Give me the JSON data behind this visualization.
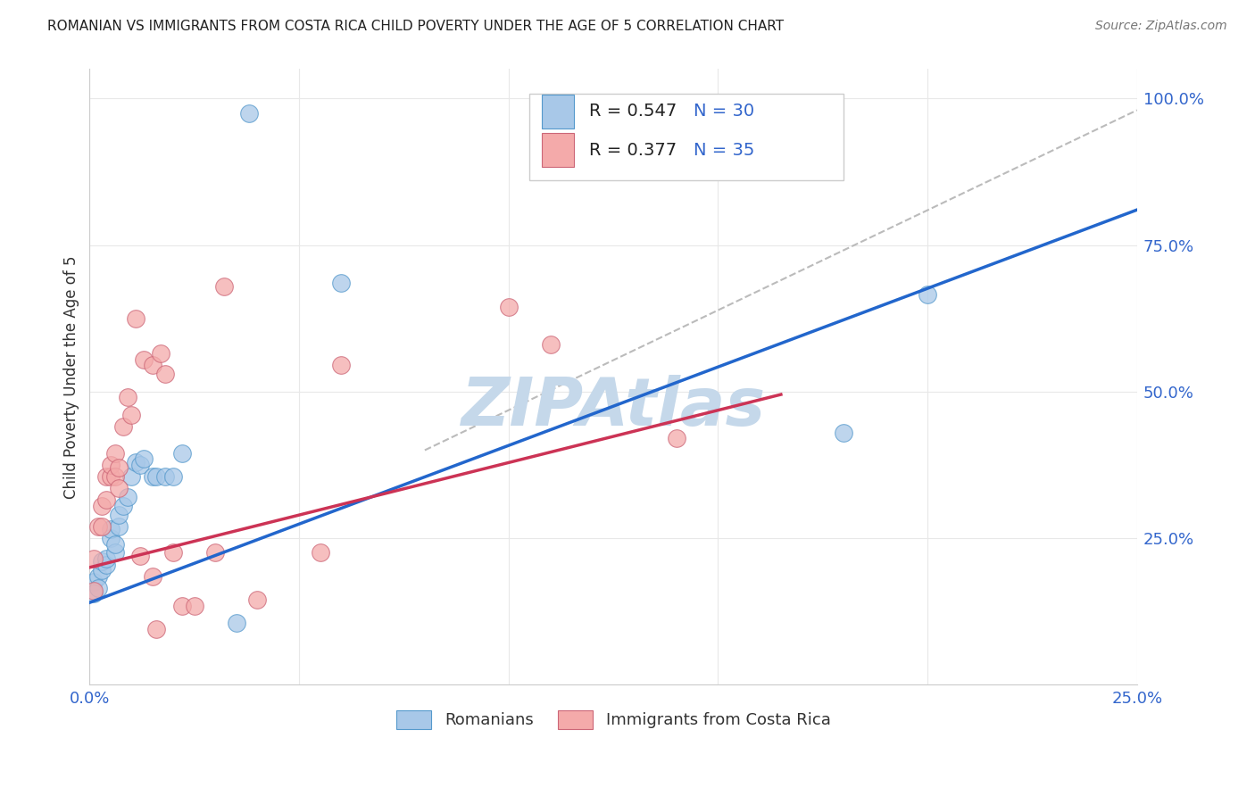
{
  "title": "ROMANIAN VS IMMIGRANTS FROM COSTA RICA CHILD POVERTY UNDER THE AGE OF 5 CORRELATION CHART",
  "source": "Source: ZipAtlas.com",
  "ylabel": "Child Poverty Under the Age of 5",
  "xlim": [
    0.0,
    0.25
  ],
  "ylim": [
    0.0,
    1.05
  ],
  "xticks": [
    0.0,
    0.05,
    0.1,
    0.15,
    0.2,
    0.25
  ],
  "xticklabels": [
    "0.0%",
    "",
    "",
    "",
    "",
    "25.0%"
  ],
  "yticks": [
    0.0,
    0.25,
    0.5,
    0.75,
    1.0
  ],
  "yticklabels": [
    "",
    "25.0%",
    "50.0%",
    "75.0%",
    "100.0%"
  ],
  "blue_fill": "#a8c8e8",
  "blue_edge": "#5599cc",
  "pink_fill": "#f4aaaa",
  "pink_edge": "#cc6677",
  "blue_line_color": "#2266cc",
  "pink_line_color": "#cc3355",
  "dashed_line_color": "#bbbbbb",
  "watermark": "ZIPAtlas",
  "watermark_color": "#c5d8ea",
  "legend_R_blue": "0.547",
  "legend_N_blue": "30",
  "legend_R_pink": "0.377",
  "legend_N_pink": "35",
  "blue_scatter_x": [
    0.001,
    0.001,
    0.002,
    0.002,
    0.003,
    0.003,
    0.004,
    0.004,
    0.005,
    0.005,
    0.006,
    0.006,
    0.007,
    0.007,
    0.008,
    0.009,
    0.01,
    0.011,
    0.012,
    0.013,
    0.015,
    0.016,
    0.018,
    0.02,
    0.022,
    0.035,
    0.038,
    0.06,
    0.18,
    0.2
  ],
  "blue_scatter_y": [
    0.175,
    0.155,
    0.185,
    0.165,
    0.195,
    0.21,
    0.205,
    0.215,
    0.25,
    0.265,
    0.225,
    0.24,
    0.27,
    0.29,
    0.305,
    0.32,
    0.355,
    0.38,
    0.375,
    0.385,
    0.355,
    0.355,
    0.355,
    0.355,
    0.395,
    0.105,
    0.975,
    0.685,
    0.43,
    0.665
  ],
  "pink_scatter_x": [
    0.001,
    0.001,
    0.002,
    0.003,
    0.003,
    0.004,
    0.004,
    0.005,
    0.005,
    0.006,
    0.006,
    0.007,
    0.007,
    0.008,
    0.009,
    0.01,
    0.011,
    0.012,
    0.013,
    0.015,
    0.015,
    0.016,
    0.017,
    0.018,
    0.02,
    0.022,
    0.025,
    0.03,
    0.032,
    0.04,
    0.055,
    0.06,
    0.1,
    0.11,
    0.14
  ],
  "pink_scatter_y": [
    0.16,
    0.215,
    0.27,
    0.27,
    0.305,
    0.315,
    0.355,
    0.355,
    0.375,
    0.355,
    0.395,
    0.335,
    0.37,
    0.44,
    0.49,
    0.46,
    0.625,
    0.22,
    0.555,
    0.545,
    0.185,
    0.095,
    0.565,
    0.53,
    0.225,
    0.135,
    0.135,
    0.225,
    0.68,
    0.145,
    0.225,
    0.545,
    0.645,
    0.58,
    0.42
  ],
  "blue_trendline_x": [
    0.0,
    0.25
  ],
  "blue_trendline_y": [
    0.14,
    0.81
  ],
  "pink_trendline_x": [
    0.0,
    0.165
  ],
  "pink_trendline_y": [
    0.2,
    0.495
  ],
  "dashed_line_x": [
    0.08,
    0.25
  ],
  "dashed_line_y": [
    0.4,
    0.98
  ],
  "background_color": "#ffffff",
  "grid_color": "#e8e8e8",
  "tick_color": "#3366cc",
  "title_color": "#222222",
  "source_color": "#777777",
  "ylabel_color": "#333333"
}
